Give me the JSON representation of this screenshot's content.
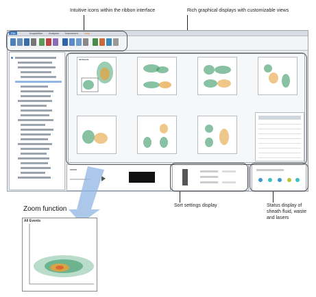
{
  "callouts": {
    "ribbon_icons": "Intuitive icons within the ribbon interface",
    "graphical_displays": "Rich graphical displays with customizable views",
    "sort_settings": "Sort settings display",
    "status_line1": "Status display of",
    "status_line2": "sheath fluid, waste",
    "status_line3": "and lasers"
  },
  "app": {
    "menu": [
      "File",
      "Acquisition",
      "Analysis",
      "Instrument",
      "Help"
    ],
    "zoom_panel_title": "Zoom function",
    "zoom_subtitle": "All Events"
  },
  "colors": {
    "accent": "#3b7cc4",
    "density_low": "#2f8f57",
    "density_high": "#e6a23c"
  }
}
